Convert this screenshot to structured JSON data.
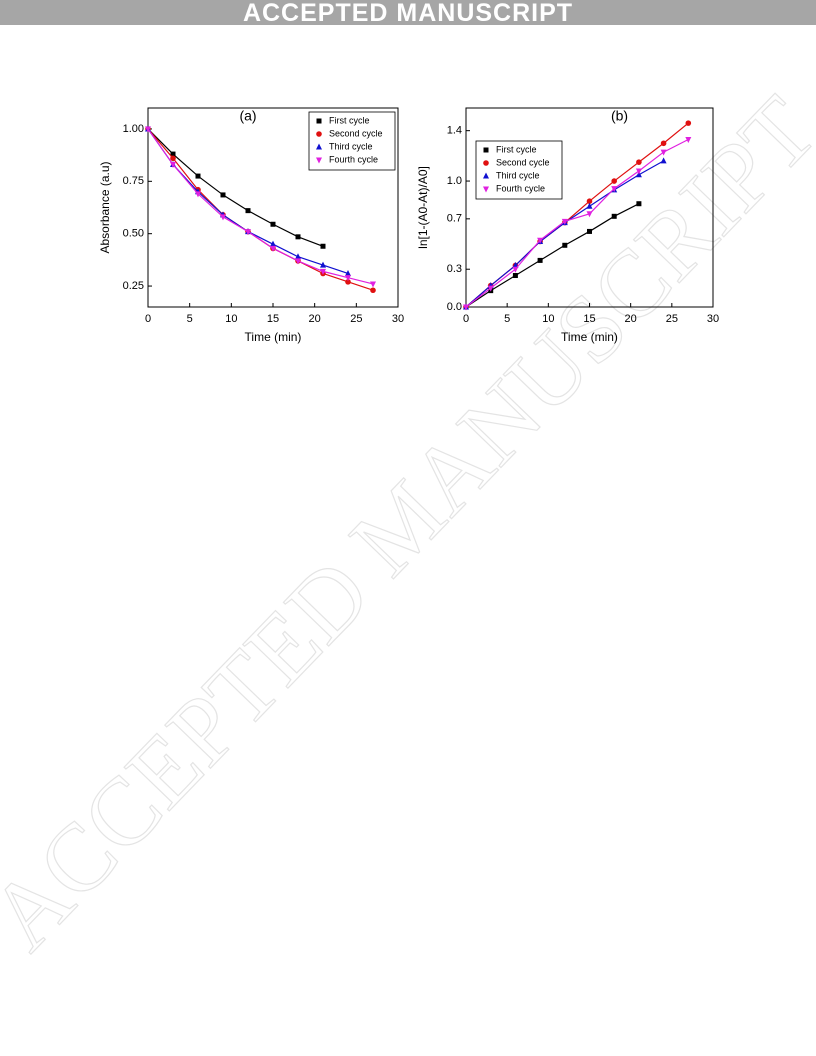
{
  "header": {
    "title": "ACCEPTED MANUSCRIPT"
  },
  "watermark": "ACCEPTED MANUSCRIPT",
  "chart_data": [
    {
      "type": "scatter",
      "annotation": "(a)",
      "x_label": "Time (min)",
      "y_label": "Absorbance (a.u)",
      "xlim": [
        0,
        30
      ],
      "xticks": [
        0,
        5,
        10,
        15,
        20,
        25,
        30
      ],
      "ylim": [
        0.15,
        1.1
      ],
      "yticks": [
        {
          "value": 0.25,
          "label": "0.25"
        },
        {
          "value": 0.5,
          "label": "0.50"
        },
        {
          "value": 0.75,
          "label": "0.75"
        },
        {
          "value": 1,
          "label": "1.00"
        }
      ],
      "legend": "upper right",
      "series": [
        {
          "name": "First cycle",
          "color": "#000000",
          "marker": "square",
          "x": [
            0,
            3,
            6,
            9,
            12,
            15,
            18,
            21
          ],
          "values": [
            1.0,
            0.88,
            0.775,
            0.685,
            0.61,
            0.545,
            0.485,
            0.44
          ]
        },
        {
          "name": "Second cycle",
          "color": "#e01010",
          "marker": "circle",
          "x": [
            0,
            3,
            6,
            9,
            12,
            15,
            18,
            21,
            24,
            27
          ],
          "values": [
            1.0,
            0.86,
            0.71,
            0.59,
            0.51,
            0.43,
            0.37,
            0.31,
            0.27,
            0.23
          ]
        },
        {
          "name": "Third cycle",
          "color": "#1010d0",
          "marker": "triangle-up",
          "x": [
            0,
            3,
            6,
            9,
            12,
            15,
            18,
            21,
            24
          ],
          "values": [
            1.0,
            0.83,
            0.7,
            0.59,
            0.51,
            0.45,
            0.39,
            0.35,
            0.31
          ]
        },
        {
          "name": "Fourth cycle",
          "color": "#e020e0",
          "marker": "triangle-down",
          "x": [
            0,
            3,
            6,
            9,
            12,
            15,
            18,
            21,
            24,
            27
          ],
          "values": [
            1.0,
            0.83,
            0.69,
            0.58,
            0.51,
            0.43,
            0.37,
            0.32,
            0.29,
            0.26
          ]
        }
      ]
    },
    {
      "type": "scatter",
      "annotation": "(b)",
      "x_label": "Time (min)",
      "y_label": "ln[1-(A0-At)/A0]",
      "xlim": [
        0,
        30
      ],
      "xticks": [
        0,
        5,
        10,
        15,
        20,
        25,
        30
      ],
      "ylim": [
        0,
        1.58
      ],
      "yticks": [
        {
          "value": 0,
          "label": "0.0"
        },
        0.3,
        0.7,
        {
          "value": 1,
          "label": "1.0"
        },
        1.4
      ],
      "legend": "upper left",
      "series": [
        {
          "name": "First cycle",
          "color": "#000000",
          "marker": "square",
          "x": [
            0,
            3,
            6,
            9,
            12,
            15,
            18,
            21
          ],
          "values": [
            0,
            0.13,
            0.25,
            0.37,
            0.49,
            0.6,
            0.72,
            0.82
          ]
        },
        {
          "name": "Second cycle",
          "color": "#e01010",
          "marker": "circle",
          "x": [
            0,
            3,
            6,
            9,
            12,
            15,
            18,
            21,
            24,
            27
          ],
          "values": [
            0,
            0.17,
            0.33,
            0.52,
            0.67,
            0.84,
            1.0,
            1.15,
            1.3,
            1.46
          ]
        },
        {
          "name": "Third cycle",
          "color": "#1010d0",
          "marker": "triangle-up",
          "x": [
            0,
            3,
            6,
            9,
            12,
            15,
            18,
            21,
            24
          ],
          "values": [
            0,
            0.17,
            0.33,
            0.52,
            0.67,
            0.8,
            0.93,
            1.05,
            1.16
          ]
        },
        {
          "name": "Fourth cycle",
          "color": "#e020e0",
          "marker": "triangle-down",
          "x": [
            0,
            3,
            6,
            9,
            12,
            15,
            18,
            21,
            24,
            27
          ],
          "values": [
            0,
            0.15,
            0.3,
            0.53,
            0.68,
            0.74,
            0.94,
            1.08,
            1.23,
            1.33
          ]
        }
      ]
    }
  ]
}
